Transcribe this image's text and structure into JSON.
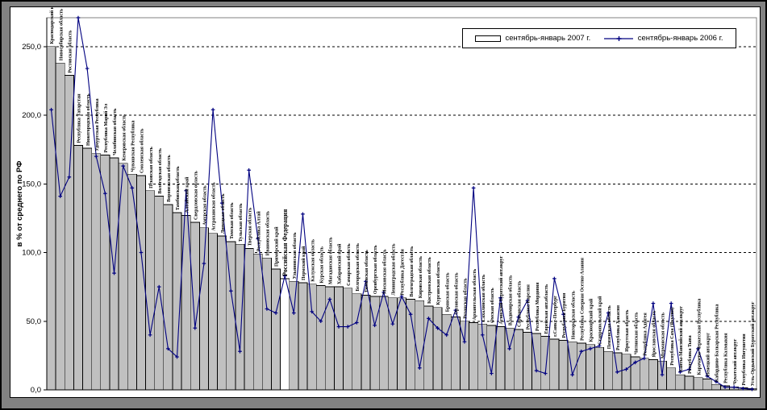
{
  "window": {
    "outer_bg": "#828282",
    "panel_bg": "#ffffff",
    "border_color": "#000000"
  },
  "legend": {
    "items": [
      {
        "label": "сентябрь-январь 2007 г.",
        "type": "bar",
        "color": "#c0c0c0"
      },
      {
        "label": "сентябрь-январь 2006 г.",
        "type": "line",
        "color": "#000080"
      }
    ]
  },
  "chart_data": {
    "type": "bar",
    "title": "",
    "xlabel": "",
    "ylabel": "в % от среднего по РФ",
    "ylim": [
      0,
      271
    ],
    "grid": "horizontal-dashed",
    "legend_position": "top-right",
    "yticks": [
      {
        "v": 0,
        "label": "0,0"
      },
      {
        "v": 50,
        "label": "50,0"
      },
      {
        "v": 100,
        "label": "100,0"
      },
      {
        "v": 150,
        "label": "150,0"
      },
      {
        "v": 200,
        "label": "200,0"
      },
      {
        "v": 250,
        "label": "250,0"
      }
    ],
    "highlight_category": "Российская Федерация",
    "categories": [
      "Краснодарский край",
      "Новосибирская область",
      "Ростовская область",
      "Республика Татарстан",
      "Нижегородская область",
      "Удмуртская Республика",
      "Республика Марий Эл",
      "Челябинская область",
      "Кемеровская область",
      "Чувашская Республика",
      "Смоленская область",
      "Псковская область",
      "Вологодская область",
      "Воронежская область",
      "Тамбовская область",
      "Алтайский край",
      "Свердловская область",
      "Амурская область",
      "Астраханская область",
      "Липецкая область",
      "Томская область",
      "Тульская область",
      "Тверская область",
      "Республика Алтай",
      "Ивановская область",
      "Приморский край",
      "Российская Федерация",
      "Ульяновская область",
      "Пермский край",
      "Калужская область",
      "Курская область",
      "Магаданская область",
      "Хабаровский край",
      "Самарская область",
      "Белгородская область",
      "Тюменская область",
      "Оренбургская область",
      "Московская область",
      "Ленинградская область",
      "Республика Дагестан",
      "Волгоградская область",
      "Кировская область",
      "Костромская область",
      "Курганская область",
      "Брянская область",
      "Орловская область",
      "Рязанская область",
      "Архангельская область",
      "Сахалинская область",
      "Омская область",
      "Агинский Бурятский авт.округ",
      "Владимирская область",
      "Саратовская область",
      "Республика Карелия",
      "Республика Мордовия",
      "Еврейская авт.область",
      "г.Санкт-Петербург",
      "Республика Бурятия",
      "Новгородская область",
      "Республика Северная Осетия-Алания",
      "Красноярский край",
      "Ставропольский край",
      "Пензенская область",
      "Республика Хакасия",
      "Иркутская область",
      "Читинская область",
      "Республика Адыгея",
      "Ярославская область",
      "Мурманская область",
      "Республика Саха (Якутия)",
      "Ханты-Мансийский авт.округ",
      "Республика Тыва",
      "Карачаево-Черкесская Республика",
      "Ненецкий авт.округ",
      "Кабардино-Балкарская Республика",
      "Республика Калмыкия",
      "Чукотский авт.округ",
      "Республика Ингушетия",
      "Усть-Ордынский Бурятский авт.округ"
    ],
    "series": [
      {
        "name": "сентябрь-январь 2007 г.",
        "type": "bar",
        "color": "#c0c0c0",
        "values": [
          250,
          238,
          229,
          178,
          176,
          172,
          171,
          169,
          165,
          157,
          156,
          145,
          141,
          135,
          129,
          127,
          122,
          118,
          114,
          112,
          108,
          106,
          103,
          99,
          96,
          88,
          81,
          79,
          78,
          77,
          76,
          75,
          75,
          74,
          70,
          69,
          68,
          68,
          67,
          67,
          66,
          65,
          61,
          60,
          55,
          53,
          50,
          49,
          48,
          47,
          46,
          45,
          44,
          42,
          41,
          39,
          37,
          36,
          35,
          34,
          33,
          31,
          28,
          27,
          26,
          24,
          23,
          22,
          21,
          16,
          11,
          10,
          9,
          8,
          4,
          3,
          2,
          1.5,
          1
        ]
      },
      {
        "name": "сентябрь-январь 2006 г.",
        "type": "line",
        "color": "#000080",
        "values": [
          204,
          141,
          155,
          271,
          234,
          170,
          143,
          85,
          163,
          147,
          100,
          40,
          75,
          30,
          24,
          145,
          45,
          92,
          204,
          136,
          72,
          28,
          160,
          110,
          59,
          56,
          83,
          56,
          128,
          57,
          50,
          66,
          46,
          46,
          49,
          79,
          47,
          71,
          48,
          68,
          55,
          16,
          52,
          45,
          40,
          58,
          35,
          147,
          40,
          12,
          67,
          30,
          53,
          65,
          14,
          12,
          81,
          55,
          11,
          28,
          30,
          32,
          56,
          13,
          15,
          20,
          23,
          63,
          11,
          63,
          13,
          15,
          30,
          10,
          6,
          2,
          2,
          1,
          0.5
        ]
      }
    ]
  }
}
